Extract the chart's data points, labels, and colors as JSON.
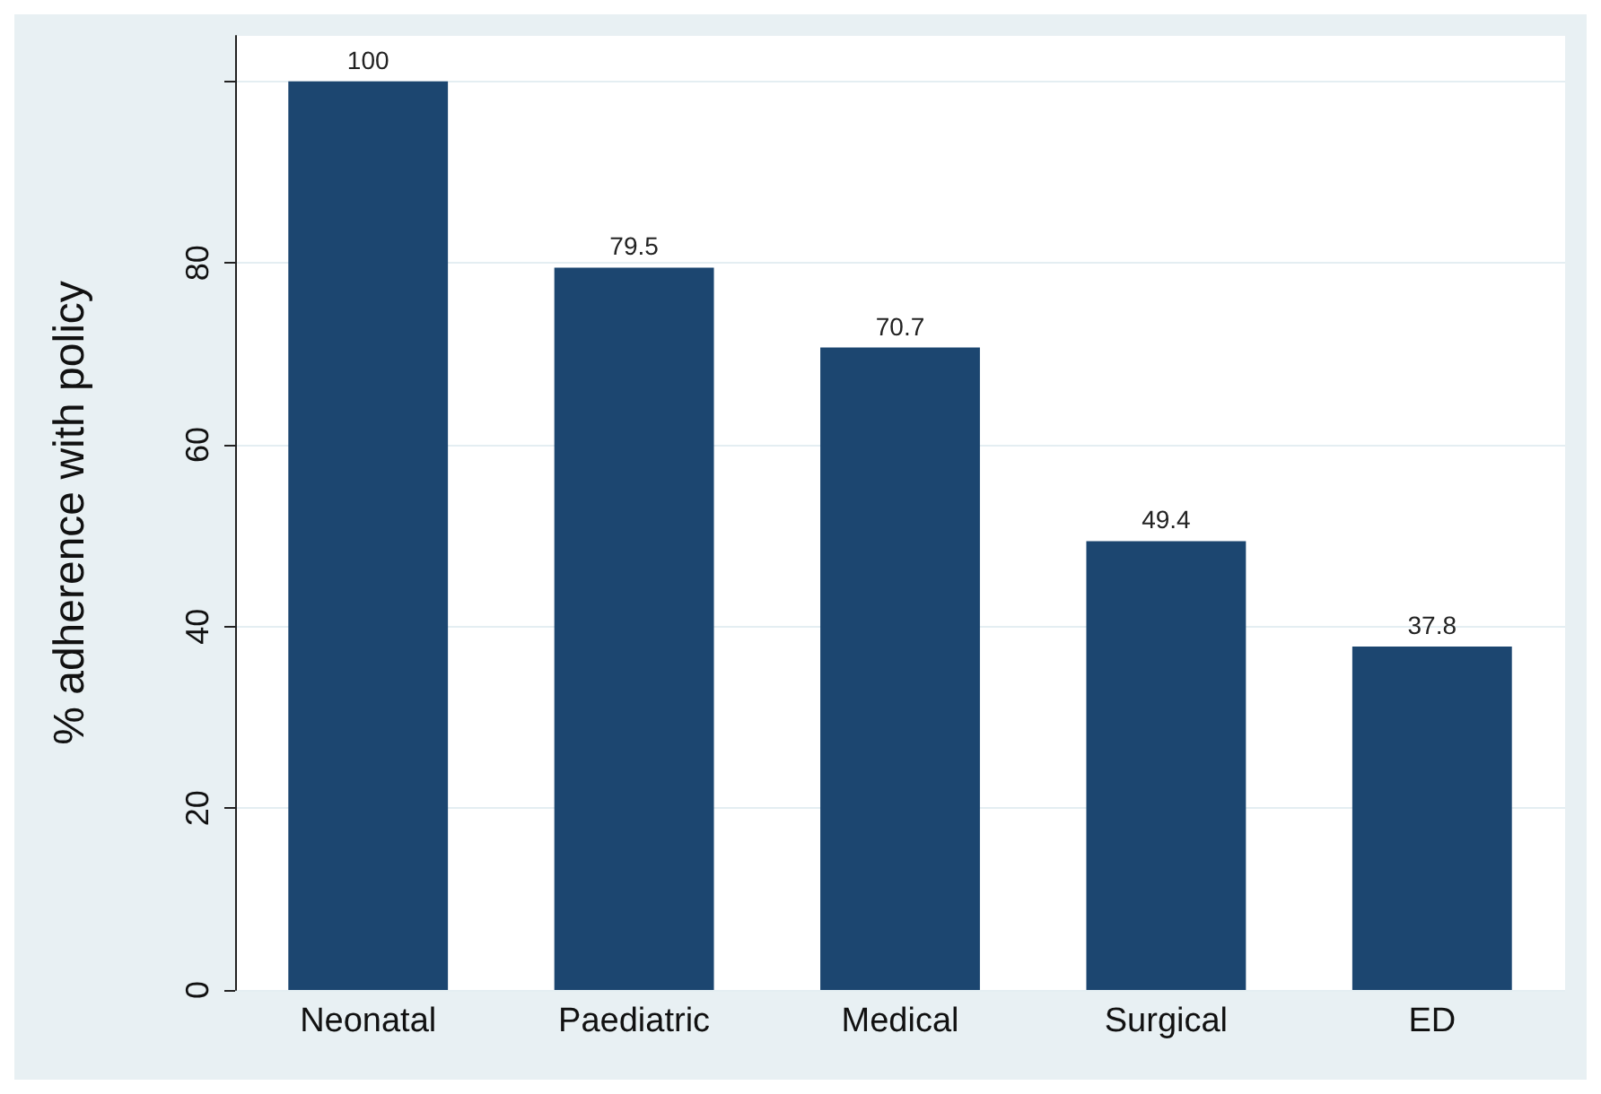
{
  "chart_data": {
    "type": "bar",
    "ylabel": "% adherence with policy",
    "categories": [
      "Neonatal",
      "Paediatric",
      "Medical",
      "Surgical",
      "ED"
    ],
    "values": [
      100,
      79.5,
      70.7,
      49.4,
      37.8
    ],
    "color": "#1c4670",
    "ylim": [
      0,
      105
    ],
    "yticks": [
      0,
      20,
      40,
      60,
      80,
      {
        "value": 100,
        "label": null
      }
    ],
    "grid": "y",
    "data_labels": true
  }
}
